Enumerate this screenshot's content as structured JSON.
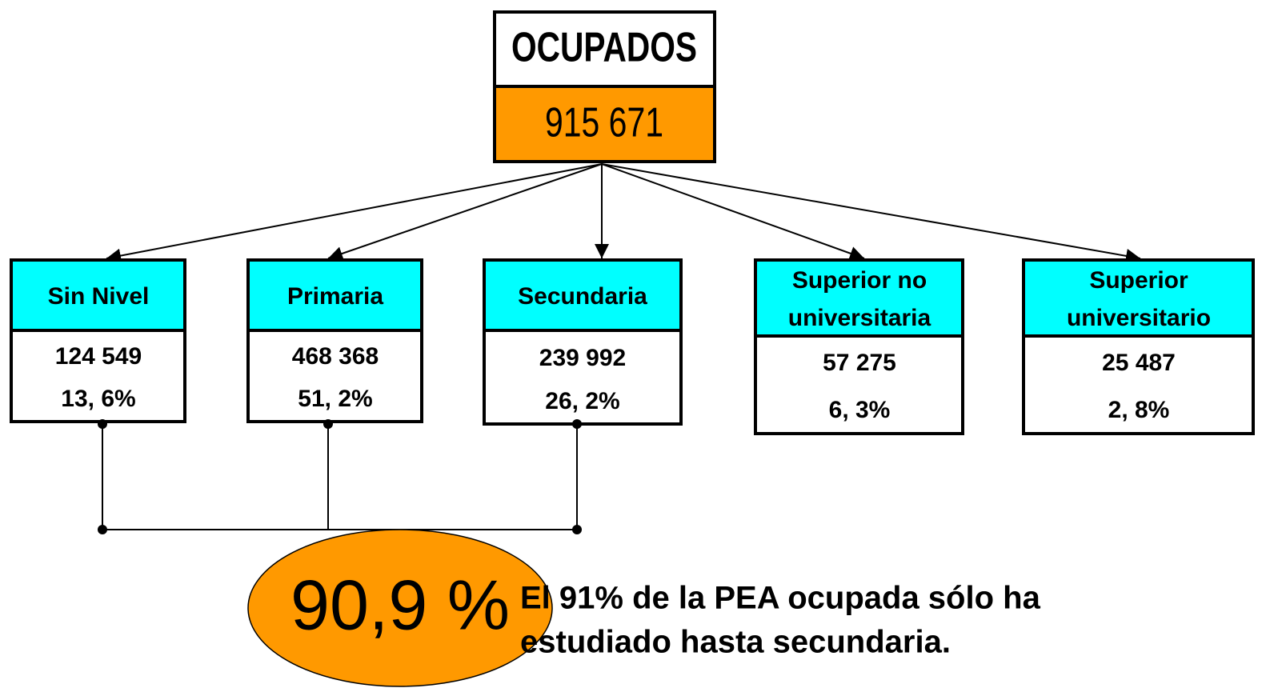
{
  "root": {
    "label": "OCUPADOS",
    "value": "915 671"
  },
  "children": [
    {
      "label": [
        "Sin Nivel"
      ],
      "value": "124 549",
      "percent": "13, 6%"
    },
    {
      "label": [
        "Primaria"
      ],
      "value": "468 368",
      "percent": "51, 2%"
    },
    {
      "label": [
        "Secundaria"
      ],
      "value": "239 992",
      "percent": "26, 2%"
    },
    {
      "label": [
        "Superior no",
        "universitaria"
      ],
      "value": "57 275",
      "percent": "6, 3%"
    },
    {
      "label": [
        "Superior",
        "universitario"
      ],
      "value": "25 487",
      "percent": "2, 8%"
    }
  ],
  "summary": "90,9 %",
  "note": [
    "El 91% de la PEA ocupada sólo ha",
    "estudiado hasta secundaria."
  ]
}
